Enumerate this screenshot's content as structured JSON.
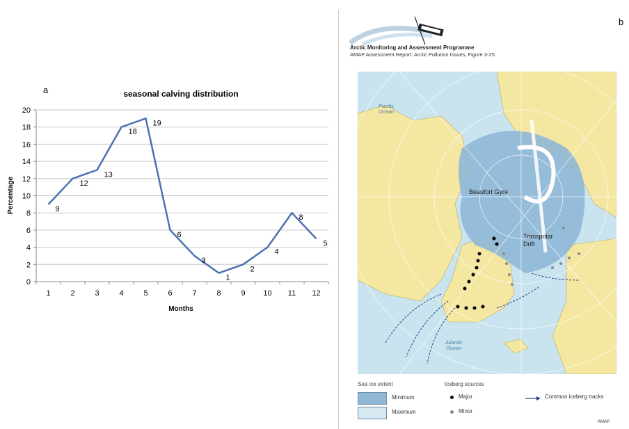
{
  "panel_a": {
    "letter": "a"
  },
  "panel_b": {
    "letter": "b"
  },
  "chart_data": {
    "type": "line",
    "title": "seasonal calving distribution",
    "xlabel": "Months",
    "ylabel": "Percentage",
    "categories": [
      "1",
      "2",
      "3",
      "4",
      "5",
      "6",
      "7",
      "8",
      "9",
      "10",
      "11",
      "12"
    ],
    "values": [
      9,
      12,
      13,
      18,
      19,
      6,
      3,
      1,
      2,
      4,
      8,
      5
    ],
    "data_labels": [
      "9",
      "12",
      "13",
      "18",
      "19",
      "6",
      "3",
      "1",
      "2",
      "4",
      "8",
      "5"
    ],
    "ylim": [
      0,
      20
    ],
    "yticks": [
      0,
      2,
      4,
      6,
      8,
      10,
      12,
      14,
      16,
      18,
      20
    ],
    "grid": true,
    "line_color": "#4a72b0"
  },
  "amap": {
    "title": "Arctic Monitoring and Assessment Programme",
    "subtitle": "AMAP Assessment Report: Arctic Pollution Issues, Figure 3-25",
    "footer": "AMAP"
  },
  "map_labels": {
    "pacific": "Pacific\nOcean",
    "atlantic": "Atlantic\nOcean",
    "beaufort": "Beaufort Gyre",
    "transpolar": "Transpolar\nDrift"
  },
  "legend": {
    "sea_ice_heading": "Sea ice extent",
    "minimum": "Minimum",
    "maximum": "Maximum",
    "iceberg_heading": "Iceberg sources",
    "major": "Major",
    "minor": "Minor",
    "tracks": "Common iceberg tracks"
  },
  "colors": {
    "sea_ice_min": "#8fb7d6",
    "sea_ice_max": "#c9e4ef",
    "land": "#f3e7a2",
    "track": "#2a3f8a"
  }
}
